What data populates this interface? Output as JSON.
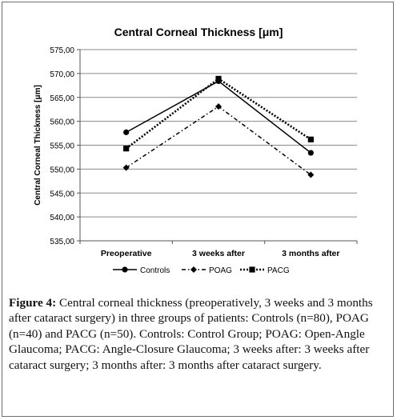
{
  "chart_data": {
    "type": "line",
    "title": "Central Corneal Thickness [μm]",
    "ylabel": "Central Corneal Thickness [μm]",
    "xlabel": "",
    "categories": [
      "Preoperative",
      "3 weeks after",
      "3 months after"
    ],
    "ylim": [
      535,
      575
    ],
    "yticks": [
      "535,00",
      "540,00",
      "545,00",
      "550,00",
      "555,00",
      "560,00",
      "565,00",
      "570,00",
      "575,00"
    ],
    "grid": true,
    "legend_position": "bottom",
    "series": [
      {
        "name": "Controls",
        "values": [
          557.7,
          568.4,
          553.4
        ],
        "line": "solid",
        "marker": "circle",
        "color": "#000000"
      },
      {
        "name": "POAG",
        "values": [
          550.3,
          563.1,
          548.8
        ],
        "line": "dash-dot",
        "marker": "diamond",
        "color": "#000000"
      },
      {
        "name": "PACG",
        "values": [
          554.3,
          568.9,
          556.2
        ],
        "line": "dotted",
        "marker": "square",
        "color": "#000000"
      }
    ]
  },
  "caption": {
    "label": "Figure 4:",
    "text": "Central corneal thickness (preoperatively, 3 weeks and 3 months after cataract surgery) in three groups of patients: Controls (n=80), POAG (n=40) and PACG (n=50). Controls: Control Group; POAG: Open-Angle Glaucoma; PACG: Angle-Closure Glaucoma; 3 weeks after: 3 weeks after cataract surgery; 3 months after: 3 months after cataract surgery."
  }
}
